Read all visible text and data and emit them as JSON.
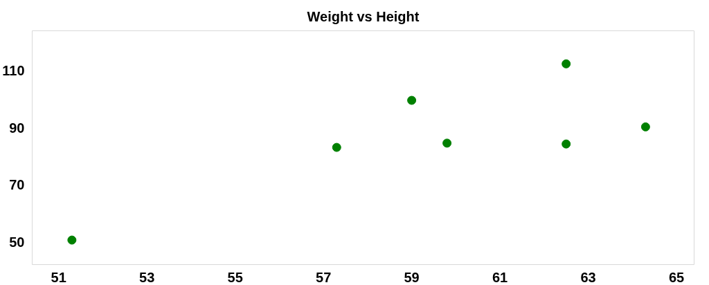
{
  "chart_data": {
    "type": "scatter",
    "title": "Weight vs Height",
    "x": [
      51.3,
      57.3,
      59.0,
      59.8,
      62.5,
      62.5,
      64.3
    ],
    "values": [
      50.6,
      83.1,
      99.6,
      84.6,
      112.4,
      84.3,
      90.3
    ],
    "color": "#008000",
    "marker": "circle",
    "grid": false,
    "xlim": [
      50.4,
      65.4
    ],
    "ylim": [
      42,
      124
    ],
    "xticks": [
      51,
      53,
      55,
      57,
      59,
      61,
      63,
      65
    ],
    "yticks": [
      50,
      70,
      90,
      110
    ]
  }
}
